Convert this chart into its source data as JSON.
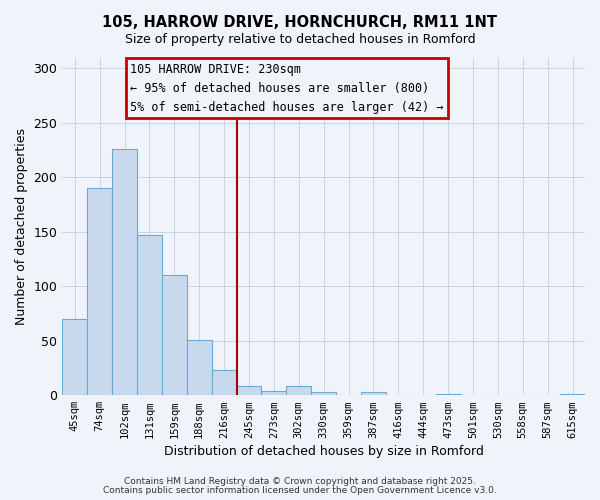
{
  "title": "105, HARROW DRIVE, HORNCHURCH, RM11 1NT",
  "subtitle": "Size of property relative to detached houses in Romford",
  "xlabel": "Distribution of detached houses by size in Romford",
  "ylabel": "Number of detached properties",
  "bar_labels": [
    "45sqm",
    "74sqm",
    "102sqm",
    "131sqm",
    "159sqm",
    "188sqm",
    "216sqm",
    "245sqm",
    "273sqm",
    "302sqm",
    "330sqm",
    "359sqm",
    "387sqm",
    "416sqm",
    "444sqm",
    "473sqm",
    "501sqm",
    "530sqm",
    "558sqm",
    "587sqm",
    "615sqm"
  ],
  "bar_values": [
    70,
    190,
    226,
    147,
    110,
    51,
    23,
    8,
    4,
    8,
    3,
    0,
    3,
    0,
    0,
    1,
    0,
    0,
    0,
    0,
    1
  ],
  "bar_color": "#c8d9ee",
  "bar_edge_color": "#6aaad4",
  "vline_x": 6.5,
  "vline_color": "#aa0000",
  "annotation_title": "105 HARROW DRIVE: 230sqm",
  "annotation_line1": "← 95% of detached houses are smaller (800)",
  "annotation_line2": "5% of semi-detached houses are larger (42) →",
  "footer1": "Contains HM Land Registry data © Crown copyright and database right 2025.",
  "footer2": "Contains public sector information licensed under the Open Government Licence v3.0.",
  "ylim": [
    0,
    310
  ],
  "background_color": "#f0f4fa",
  "grid_color": "#c8d4e8"
}
